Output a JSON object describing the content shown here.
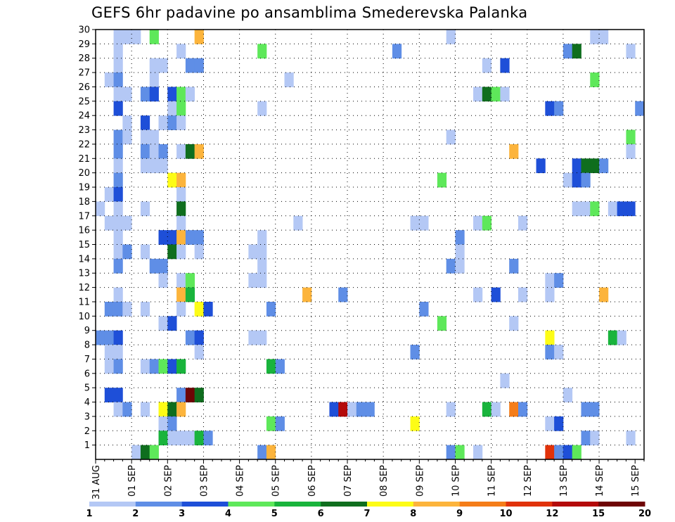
{
  "chart_data": {
    "type": "heatmap",
    "title": "GEFS 6hr padavine po ansamblima Smederevska Palanka",
    "xlabel": "",
    "ylabel": "",
    "x_tick_labels": [
      "31 AUG",
      "01 SEP",
      "02 SEP",
      "03 SEP",
      "04 SEP",
      "05 SEP",
      "06 SEP",
      "07 SEP",
      "08 SEP",
      "09 SEP",
      "10 SEP",
      "11 SEP",
      "12 SEP",
      "13 SEP",
      "14 SEP",
      "15 SEP"
    ],
    "y_tick_labels": [
      "1",
      "2",
      "3",
      "4",
      "5",
      "6",
      "7",
      "8",
      "9",
      "10",
      "11",
      "12",
      "13",
      "14",
      "15",
      "16",
      "17",
      "18",
      "19",
      "20",
      "21",
      "22",
      "23",
      "24",
      "25",
      "26",
      "27",
      "28",
      "29",
      "30"
    ],
    "y_range": [
      0,
      30
    ],
    "x_step_hours": 6,
    "steps": 61,
    "grid": true,
    "color_scale": {
      "boundaries": [
        "1",
        "2",
        "3",
        "4",
        "5",
        "6",
        "7",
        "8",
        "9",
        "10",
        "12",
        "15",
        "20"
      ],
      "colors": [
        "#b4c8f5",
        "#5f8ee6",
        "#1e4fd8",
        "#5ee85a",
        "#19b43c",
        "#0f6e1e",
        "#fdfc16",
        "#fcb43c",
        "#f57d19",
        "#e1320a",
        "#b40a0a",
        "#6e0505"
      ]
    },
    "cells": [
      [
        2,
        30,
        1
      ],
      [
        3,
        30,
        1
      ],
      [
        4,
        30,
        1
      ],
      [
        6,
        30,
        4
      ],
      [
        11,
        30,
        8
      ],
      [
        39,
        30,
        1
      ],
      [
        55,
        30,
        1
      ],
      [
        56,
        30,
        1
      ],
      [
        2,
        29,
        1
      ],
      [
        9,
        29,
        1
      ],
      [
        18,
        29,
        4
      ],
      [
        33,
        29,
        2
      ],
      [
        52,
        29,
        2
      ],
      [
        53,
        29,
        6
      ],
      [
        59,
        29,
        1
      ],
      [
        2,
        28,
        1
      ],
      [
        6,
        28,
        1
      ],
      [
        7,
        28,
        1
      ],
      [
        10,
        28,
        2
      ],
      [
        11,
        28,
        2
      ],
      [
        43,
        28,
        1
      ],
      [
        45,
        28,
        3
      ],
      [
        1,
        27,
        1
      ],
      [
        2,
        27,
        2
      ],
      [
        6,
        27,
        1
      ],
      [
        21,
        27,
        1
      ],
      [
        55,
        27,
        4
      ],
      [
        2,
        26,
        1
      ],
      [
        3,
        26,
        1
      ],
      [
        5,
        26,
        2
      ],
      [
        6,
        26,
        3
      ],
      [
        8,
        26,
        3
      ],
      [
        9,
        26,
        4
      ],
      [
        10,
        26,
        1
      ],
      [
        42,
        26,
        1
      ],
      [
        43,
        26,
        6
      ],
      [
        44,
        26,
        4
      ],
      [
        45,
        26,
        1
      ],
      [
        2,
        25,
        3
      ],
      [
        8,
        25,
        1
      ],
      [
        9,
        25,
        4
      ],
      [
        18,
        25,
        1
      ],
      [
        50,
        25,
        3
      ],
      [
        51,
        25,
        2
      ],
      [
        60,
        25,
        2
      ],
      [
        3,
        24,
        1
      ],
      [
        5,
        24,
        3
      ],
      [
        7,
        24,
        1
      ],
      [
        8,
        24,
        2
      ],
      [
        9,
        24,
        1
      ],
      [
        2,
        23,
        2
      ],
      [
        3,
        23,
        1
      ],
      [
        5,
        23,
        1
      ],
      [
        6,
        23,
        1
      ],
      [
        39,
        23,
        1
      ],
      [
        59,
        23,
        4
      ],
      [
        2,
        22,
        2
      ],
      [
        5,
        22,
        2
      ],
      [
        6,
        22,
        1
      ],
      [
        7,
        22,
        2
      ],
      [
        9,
        22,
        1
      ],
      [
        10,
        22,
        6
      ],
      [
        11,
        22,
        8
      ],
      [
        46,
        22,
        8
      ],
      [
        59,
        22,
        1
      ],
      [
        2,
        21,
        1
      ],
      [
        5,
        21,
        1
      ],
      [
        6,
        21,
        1
      ],
      [
        7,
        21,
        1
      ],
      [
        49,
        21,
        3
      ],
      [
        53,
        21,
        3
      ],
      [
        54,
        21,
        6
      ],
      [
        55,
        21,
        6
      ],
      [
        56,
        21,
        2
      ],
      [
        2,
        20,
        2
      ],
      [
        8,
        20,
        7
      ],
      [
        9,
        20,
        8
      ],
      [
        38,
        20,
        4
      ],
      [
        52,
        20,
        1
      ],
      [
        53,
        20,
        3
      ],
      [
        54,
        20,
        2
      ],
      [
        1,
        19,
        1
      ],
      [
        2,
        19,
        3
      ],
      [
        9,
        19,
        1
      ],
      [
        0,
        18,
        1
      ],
      [
        2,
        18,
        1
      ],
      [
        5,
        18,
        1
      ],
      [
        9,
        18,
        6
      ],
      [
        53,
        18,
        1
      ],
      [
        54,
        18,
        1
      ],
      [
        55,
        18,
        4
      ],
      [
        57,
        18,
        1
      ],
      [
        58,
        18,
        3
      ],
      [
        59,
        18,
        3
      ],
      [
        1,
        17,
        1
      ],
      [
        2,
        17,
        1
      ],
      [
        3,
        17,
        1
      ],
      [
        9,
        17,
        1
      ],
      [
        22,
        17,
        1
      ],
      [
        35,
        17,
        1
      ],
      [
        36,
        17,
        1
      ],
      [
        42,
        17,
        1
      ],
      [
        43,
        17,
        4
      ],
      [
        47,
        17,
        1
      ],
      [
        2,
        16,
        1
      ],
      [
        7,
        16,
        3
      ],
      [
        8,
        16,
        3
      ],
      [
        9,
        16,
        8
      ],
      [
        10,
        16,
        2
      ],
      [
        11,
        16,
        2
      ],
      [
        18,
        16,
        1
      ],
      [
        40,
        16,
        2
      ],
      [
        2,
        15,
        1
      ],
      [
        3,
        15,
        2
      ],
      [
        5,
        15,
        1
      ],
      [
        8,
        15,
        6
      ],
      [
        9,
        15,
        1
      ],
      [
        11,
        15,
        1
      ],
      [
        17,
        15,
        1
      ],
      [
        18,
        15,
        1
      ],
      [
        40,
        15,
        1
      ],
      [
        2,
        14,
        2
      ],
      [
        6,
        14,
        2
      ],
      [
        7,
        14,
        2
      ],
      [
        18,
        14,
        1
      ],
      [
        39,
        14,
        2
      ],
      [
        40,
        14,
        1
      ],
      [
        46,
        14,
        2
      ],
      [
        7,
        13,
        1
      ],
      [
        17,
        13,
        1
      ],
      [
        18,
        13,
        1
      ],
      [
        9,
        13,
        1
      ],
      [
        10,
        13,
        4
      ],
      [
        50,
        13,
        1
      ],
      [
        51,
        13,
        2
      ],
      [
        2,
        12,
        1
      ],
      [
        9,
        12,
        8
      ],
      [
        10,
        12,
        5
      ],
      [
        23,
        12,
        8
      ],
      [
        27,
        12,
        2
      ],
      [
        42,
        12,
        1
      ],
      [
        44,
        12,
        3
      ],
      [
        47,
        12,
        1
      ],
      [
        50,
        12,
        1
      ],
      [
        56,
        12,
        8
      ],
      [
        1,
        11,
        2
      ],
      [
        2,
        11,
        2
      ],
      [
        3,
        11,
        1
      ],
      [
        5,
        11,
        1
      ],
      [
        9,
        11,
        1
      ],
      [
        11,
        11,
        7
      ],
      [
        12,
        11,
        3
      ],
      [
        19,
        11,
        2
      ],
      [
        36,
        11,
        2
      ],
      [
        7,
        10,
        1
      ],
      [
        8,
        10,
        3
      ],
      [
        38,
        10,
        4
      ],
      [
        46,
        10,
        1
      ],
      [
        0,
        9,
        2
      ],
      [
        1,
        9,
        2
      ],
      [
        2,
        9,
        3
      ],
      [
        10,
        9,
        2
      ],
      [
        11,
        9,
        3
      ],
      [
        17,
        9,
        1
      ],
      [
        18,
        9,
        1
      ],
      [
        50,
        9,
        7
      ],
      [
        57,
        9,
        5
      ],
      [
        58,
        9,
        1
      ],
      [
        1,
        8,
        1
      ],
      [
        2,
        8,
        1
      ],
      [
        11,
        8,
        1
      ],
      [
        35,
        8,
        2
      ],
      [
        50,
        8,
        2
      ],
      [
        51,
        8,
        1
      ],
      [
        1,
        7,
        1
      ],
      [
        2,
        7,
        2
      ],
      [
        5,
        7,
        1
      ],
      [
        6,
        7,
        2
      ],
      [
        7,
        7,
        4
      ],
      [
        8,
        7,
        3
      ],
      [
        9,
        7,
        5
      ],
      [
        19,
        7,
        5
      ],
      [
        20,
        7,
        2
      ],
      [
        45,
        6,
        1
      ],
      [
        1,
        5,
        3
      ],
      [
        2,
        5,
        3
      ],
      [
        9,
        5,
        2
      ],
      [
        10,
        5,
        12
      ],
      [
        11,
        5,
        6
      ],
      [
        52,
        5,
        1
      ],
      [
        2,
        4,
        1
      ],
      [
        3,
        4,
        2
      ],
      [
        5,
        4,
        1
      ],
      [
        7,
        4,
        7
      ],
      [
        8,
        4,
        6
      ],
      [
        9,
        4,
        8
      ],
      [
        26,
        4,
        3
      ],
      [
        27,
        4,
        11
      ],
      [
        28,
        4,
        1
      ],
      [
        29,
        4,
        2
      ],
      [
        30,
        4,
        2
      ],
      [
        39,
        4,
        1
      ],
      [
        43,
        4,
        5
      ],
      [
        44,
        4,
        1
      ],
      [
        46,
        4,
        9
      ],
      [
        47,
        4,
        2
      ],
      [
        54,
        4,
        2
      ],
      [
        55,
        4,
        2
      ],
      [
        7,
        3,
        1
      ],
      [
        8,
        3,
        2
      ],
      [
        19,
        3,
        4
      ],
      [
        20,
        3,
        2
      ],
      [
        35,
        3,
        7
      ],
      [
        50,
        3,
        1
      ],
      [
        51,
        3,
        3
      ],
      [
        7,
        2,
        5
      ],
      [
        8,
        2,
        1
      ],
      [
        9,
        2,
        1
      ],
      [
        10,
        2,
        1
      ],
      [
        11,
        2,
        5
      ],
      [
        12,
        2,
        2
      ],
      [
        54,
        2,
        2
      ],
      [
        55,
        2,
        1
      ],
      [
        59,
        2,
        1
      ],
      [
        4,
        1,
        1
      ],
      [
        5,
        1,
        6
      ],
      [
        6,
        1,
        4
      ],
      [
        18,
        1,
        2
      ],
      [
        19,
        1,
        8
      ],
      [
        39,
        1,
        2
      ],
      [
        40,
        1,
        4
      ],
      [
        42,
        1,
        1
      ],
      [
        50,
        1,
        10
      ],
      [
        51,
        1,
        2
      ],
      [
        52,
        1,
        3
      ],
      [
        53,
        1,
        4
      ]
    ]
  }
}
